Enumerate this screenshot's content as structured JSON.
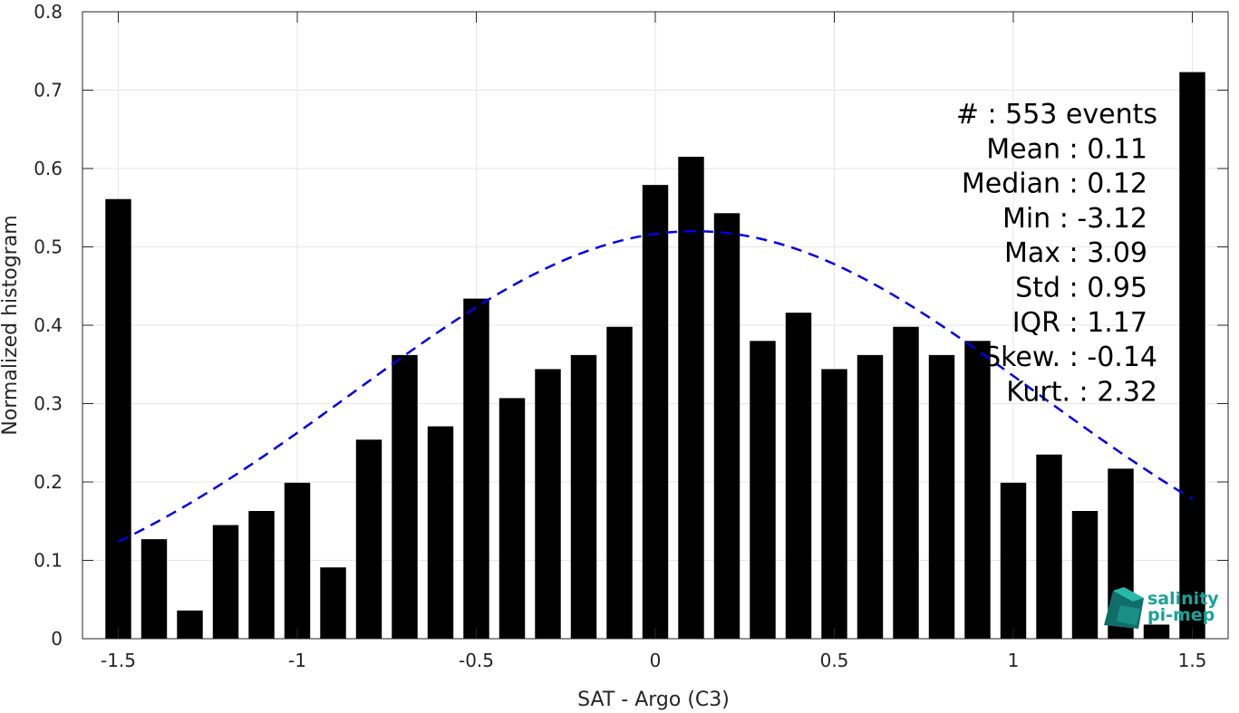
{
  "chart_data": {
    "type": "bar",
    "title": "",
    "xlabel": "SAT - Argo (C3)",
    "ylabel": "Normalized histogram",
    "xlim": [
      -1.6,
      1.6
    ],
    "ylim": [
      0,
      0.8
    ],
    "grid": true,
    "x_ticks": [
      "-1.5",
      "-1",
      "-0.5",
      "0",
      "0.5",
      "1",
      "1.5"
    ],
    "x_tick_values": [
      -1.5,
      -1,
      -0.5,
      0,
      0.5,
      1,
      1.5
    ],
    "y_ticks": [
      "0",
      "0.1",
      "0.2",
      "0.3",
      "0.4",
      "0.5",
      "0.6",
      "0.7",
      "0.8"
    ],
    "y_tick_values": [
      0,
      0.1,
      0.2,
      0.3,
      0.4,
      0.5,
      0.6,
      0.7,
      0.8
    ],
    "bin_centers": [
      -1.5,
      -1.4,
      -1.3,
      -1.2,
      -1.1,
      -1.0,
      -0.9,
      -0.8,
      -0.7,
      -0.6,
      -0.5,
      -0.4,
      -0.3,
      -0.2,
      -0.1,
      0.0,
      0.1,
      0.2,
      0.3,
      0.4,
      0.5,
      0.6,
      0.7,
      0.8,
      0.9,
      1.0,
      1.1,
      1.2,
      1.3,
      1.4,
      1.5
    ],
    "values": [
      0.561,
      0.127,
      0.036,
      0.145,
      0.163,
      0.199,
      0.091,
      0.254,
      0.362,
      0.271,
      0.434,
      0.307,
      0.344,
      0.362,
      0.398,
      0.579,
      0.615,
      0.543,
      0.38,
      0.416,
      0.344,
      0.362,
      0.398,
      0.362,
      0.38,
      0.199,
      0.235,
      0.163,
      0.217,
      0.018,
      0.723
    ],
    "bar_color": "#000000",
    "fit_curve": {
      "style": "dashed",
      "color": "#0000e6",
      "mean": 0.11,
      "std": 0.95,
      "x_range": [
        -1.5,
        1.5
      ],
      "peak": 0.52
    },
    "annotations": [
      "#  : 553 events",
      "Mean : 0.11",
      "Median : 0.12",
      "Min : -3.12",
      "Max : 3.09",
      "Std : 0.95",
      "IQR : 1.17",
      "Skew. : -0.14",
      "Kurt. : 2.32"
    ]
  },
  "logo": {
    "line1": "salinity",
    "line2": "pi-mep",
    "color": "#1aa39a"
  }
}
